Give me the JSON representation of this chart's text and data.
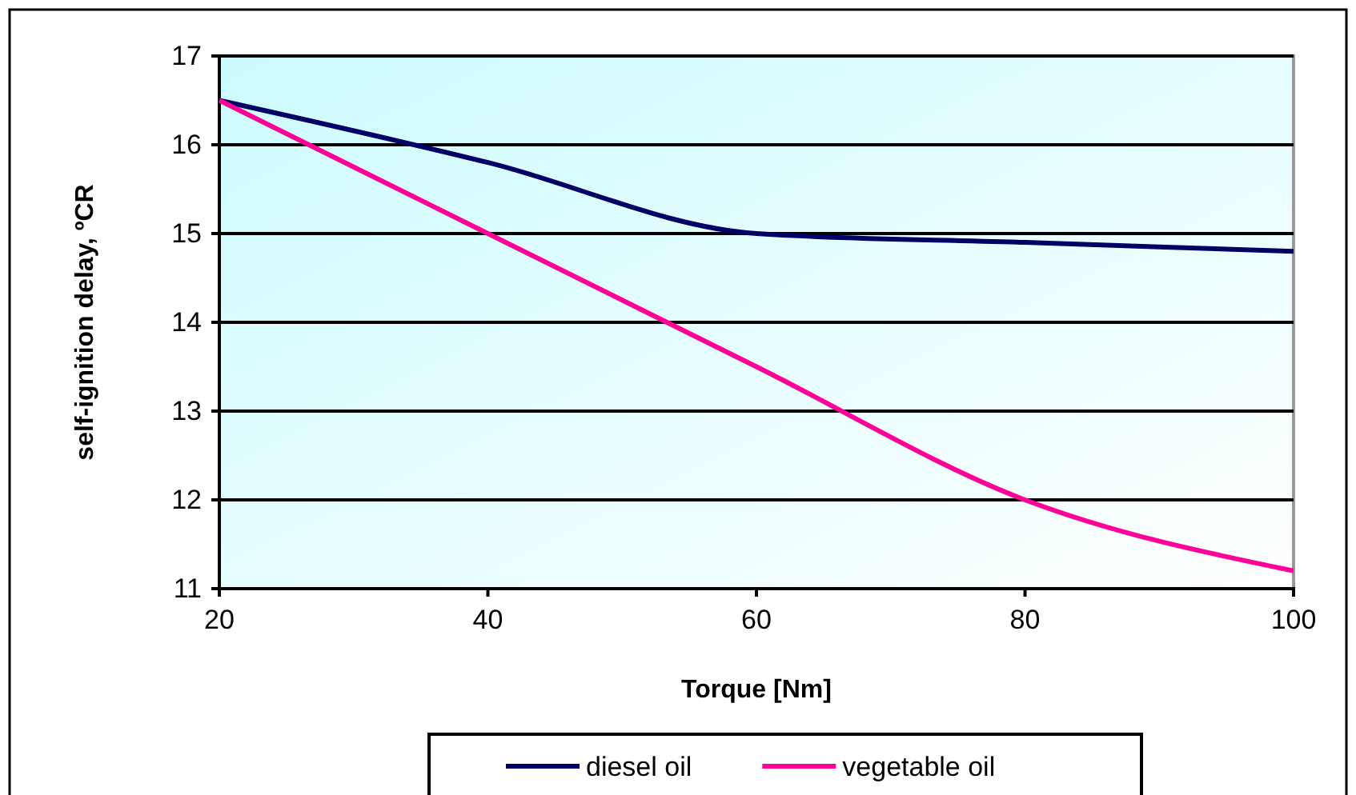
{
  "chart_data": {
    "type": "line",
    "xlabel": "Torque [Nm]",
    "ylabel": "self-ignition delay, ºCR",
    "x": [
      20,
      40,
      60,
      80,
      100
    ],
    "series": [
      {
        "name": "diesel oil",
        "color": "#000066",
        "values": [
          16.5,
          15.8,
          15.0,
          14.9,
          14.8
        ]
      },
      {
        "name": "vegetable oil",
        "color": "#ff0099",
        "values": [
          16.5,
          15.0,
          13.5,
          12.0,
          11.2
        ]
      }
    ],
    "xlim": [
      20,
      100
    ],
    "xticks": [
      20,
      40,
      60,
      80,
      100
    ],
    "ylim": [
      11,
      17
    ],
    "yticks": [
      11,
      12,
      13,
      14,
      15,
      16,
      17
    ],
    "grid": "y",
    "legend": "bottom",
    "marker": "none",
    "line_style": "solid"
  }
}
